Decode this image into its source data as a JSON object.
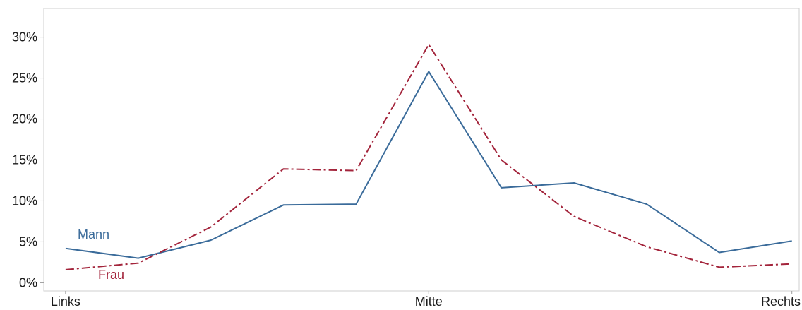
{
  "chart_data": {
    "type": "line",
    "title": "",
    "xlabel": "",
    "ylabel": "",
    "x": [
      0,
      1,
      2,
      3,
      4,
      5,
      6,
      7,
      8,
      9,
      10
    ],
    "x_tick_labels": [
      {
        "x": 0,
        "label": "Links"
      },
      {
        "x": 5,
        "label": "Mitte"
      },
      {
        "x": 10,
        "label": "Rechts"
      }
    ],
    "y_tick_labels": [
      "0%",
      "5%",
      "10%",
      "15%",
      "20%",
      "25%",
      "30%"
    ],
    "y_ticks": [
      0,
      5,
      10,
      15,
      20,
      25,
      30
    ],
    "ylim": [
      -1,
      33.5
    ],
    "xlim": [
      -0.3,
      10.1
    ],
    "grid": false,
    "series": [
      {
        "name": "Mann",
        "color": "#3a6b9a",
        "style": "solid",
        "values": [
          4.2,
          3.0,
          5.2,
          9.5,
          9.6,
          25.8,
          11.6,
          12.2,
          9.6,
          3.7,
          5.1
        ]
      },
      {
        "name": "Frau",
        "color": "#a3243b",
        "style": "dash-dot",
        "values": [
          1.6,
          2.4,
          6.8,
          13.9,
          13.7,
          29.1,
          15.0,
          8.1,
          4.4,
          1.9,
          2.3
        ]
      }
    ]
  }
}
